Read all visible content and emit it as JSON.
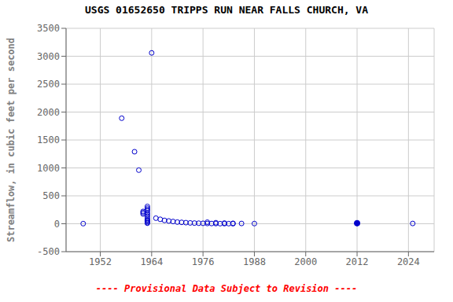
{
  "chart_data": {
    "type": "scatter",
    "title": "USGS 01652650 TRIPPS RUN NEAR FALLS CHURCH, VA",
    "ylabel": "Streamflow, in cubic feet per second",
    "xlim": [
      1944,
      2030
    ],
    "ylim": [
      -500,
      3500
    ],
    "xticks": [
      1952,
      1964,
      1976,
      1988,
      2000,
      2012,
      2024
    ],
    "yticks": [
      -500,
      0,
      500,
      1000,
      1500,
      2000,
      2500,
      3000,
      3500
    ],
    "grid": true,
    "annotations": [
      {
        "text": "---- Provisional Data Subject to Revision ----",
        "color": "red"
      }
    ],
    "series": [
      {
        "color": "#0000cc",
        "marker": "open",
        "x": [
          1948,
          1957,
          1960,
          1961,
          1962,
          1962,
          1962,
          1963,
          1963,
          1963,
          1963,
          1963,
          1963,
          1963,
          1963,
          1963,
          1963,
          1963,
          1963,
          1963,
          1964,
          1965,
          1966,
          1967,
          1968,
          1969,
          1970,
          1971,
          1972,
          1973,
          1974,
          1975,
          1976,
          1977,
          1978,
          1979,
          1980,
          1981,
          1982,
          1983,
          1977,
          1979,
          1981,
          1983,
          1985,
          1988,
          2025
        ],
        "values": [
          2,
          1890,
          1290,
          960,
          200,
          220,
          175,
          310,
          280,
          255,
          230,
          190,
          160,
          130,
          95,
          70,
          55,
          40,
          20,
          10,
          3060,
          100,
          80,
          60,
          50,
          40,
          30,
          25,
          20,
          15,
          12,
          10,
          8,
          5,
          4,
          3,
          2,
          2,
          2,
          1,
          28,
          18,
          12,
          8,
          5,
          3,
          5
        ]
      },
      {
        "color": "#0000cc",
        "marker": "filled",
        "x": [
          2012
        ],
        "values": [
          10
        ]
      }
    ]
  }
}
